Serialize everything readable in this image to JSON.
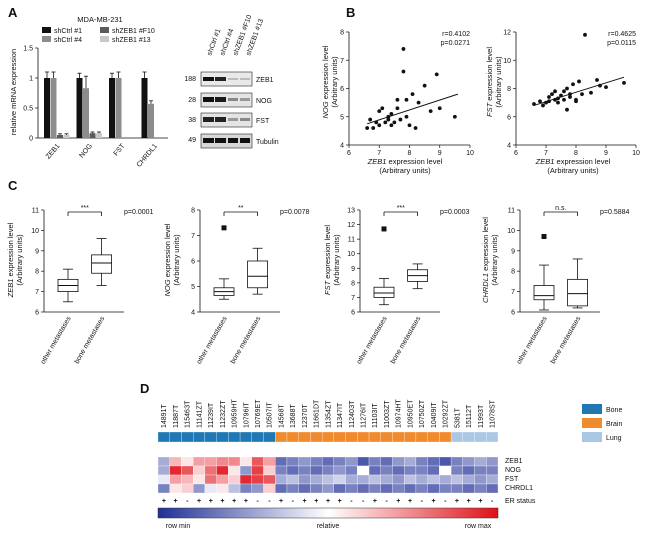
{
  "panels": {
    "a": "A",
    "b": "B",
    "c": "C",
    "d": "D"
  },
  "panel_a": {
    "cell_line": "MDA-MB-231",
    "legend": [
      "shCtrl #1",
      "shCtrl #4",
      "shZEB1 #F10",
      "shZEB1 #13"
    ],
    "colors": [
      "#111111",
      "#8c8c8c",
      "#5a5a5a",
      "#c8c8c8"
    ],
    "ylabel": "relative mRNA expression",
    "yticks": [
      "0",
      "0.5",
      "1",
      "1.5"
    ],
    "blot_lanes": [
      "shCtrl #1",
      "shCtrl #4",
      "shZEB1 #F10",
      "shZEB1 #13"
    ],
    "blot_rows": [
      {
        "mw": "188",
        "name": "ZEB1"
      },
      {
        "mw": "28",
        "name": "NOG"
      },
      {
        "mw": "38",
        "name": "FST"
      },
      {
        "mw": "49",
        "name": "Tubulin"
      }
    ]
  },
  "panel_b": [
    {
      "ylabel_gene": "NOG",
      "ylabel_rest": " expression level",
      "ylabel_unit": "(Arbitrary units)",
      "xlabel_gene": "ZEB1",
      "xlabel_rest": " expression level",
      "xlabel_unit": "(Arbitrary units)",
      "r": "r=0.4102",
      "p": "p=0.0271",
      "xticks": [
        "6",
        "7",
        "8",
        "9",
        "10"
      ],
      "yticks": [
        "4",
        "5",
        "6",
        "7",
        "8"
      ]
    },
    {
      "ylabel_gene": "FST",
      "ylabel_rest": " expression level",
      "ylabel_unit": "(Arbitrary units)",
      "xlabel_gene": "ZEB1",
      "xlabel_rest": " expression level",
      "xlabel_unit": "(Arbitrary units)",
      "r": "r=0.4625",
      "p": "p=0.0115",
      "xticks": [
        "6",
        "7",
        "8",
        "9",
        "10"
      ],
      "yticks": [
        "4",
        "6",
        "8",
        "10",
        "12"
      ]
    }
  ],
  "panel_c": [
    {
      "gene": "ZEB1",
      "sig": "***",
      "p": "p=0.0001",
      "yticks": [
        "6",
        "7",
        "8",
        "9",
        "10",
        "11"
      ]
    },
    {
      "gene": "NOG",
      "sig": "**",
      "p": "p=0.0078",
      "yticks": [
        "4",
        "5",
        "6",
        "7",
        "8"
      ]
    },
    {
      "gene": "FST",
      "sig": "***",
      "p": "p=0.0003",
      "yticks": [
        "6",
        "7",
        "8",
        "9",
        "10",
        "11",
        "12",
        "13"
      ]
    },
    {
      "gene": "CHRDL1",
      "sig": "n.s.",
      "p": "p=0.5884",
      "yticks": [
        "6",
        "7",
        "8",
        "9",
        "10",
        "11"
      ]
    }
  ],
  "panel_c_common": {
    "rest": " expression level",
    "unit": "(Arbitrary units)",
    "groups": [
      "other metastases",
      "bone metastases"
    ]
  },
  "panel_d": {
    "samples": [
      "14891T",
      "11887T",
      "11546ЗT",
      "11141ZT",
      "11239IT",
      "11232ZT",
      "10959HT",
      "10796IT",
      "10769ET",
      "10507IT",
      "14568T",
      "13688T",
      "12370T",
      "11661DT",
      "11354ZT",
      "11347IT",
      "11240ЗT",
      "11276IT",
      "11103IT",
      "11003ZT",
      "10974HT",
      "10950ET",
      "10750ZT",
      "10409IT",
      "10292ZT",
      "5381T",
      "15112T",
      "11993T",
      "11078ST"
    ],
    "legend": [
      {
        "label": "Bone",
        "color": "#1f77b4"
      },
      {
        "label": "Brain",
        "color": "#f08a2c"
      },
      {
        "label": "Lung",
        "color": "#aac7e6"
      }
    ],
    "genes": [
      "ZEB1",
      "NOG",
      "FST",
      "CHRDL1"
    ],
    "er_label": "ER status",
    "er": [
      "+",
      "+",
      "-",
      "+",
      "+",
      "+",
      "+",
      "+",
      "-",
      "-",
      "+",
      "-",
      "+",
      "+",
      "+",
      "+",
      "-",
      "-",
      "+",
      "-",
      "+",
      "+",
      "-",
      "+",
      "-",
      "+",
      "+",
      "+",
      "-"
    ],
    "colorbar": {
      "min": "row min",
      "mid": "relative",
      "max": "row max"
    }
  },
  "chart_data": [
    {
      "type": "bar",
      "title": "MDA-MB-231",
      "ylabel": "relative mRNA expression",
      "ylim": [
        0,
        1.5
      ],
      "categories": [
        "ZEB1",
        "NOG",
        "FST",
        "CHRDL1"
      ],
      "series": [
        {
          "name": "shCtrl #1",
          "values": [
            1.0,
            1.0,
            1.0,
            1.0
          ],
          "errors": [
            0.1,
            0.08,
            0.08,
            0.1
          ]
        },
        {
          "name": "shCtrl #4",
          "values": [
            1.0,
            0.83,
            1.0,
            0.57
          ],
          "errors": [
            0.1,
            0.2,
            0.1,
            0.05
          ]
        },
        {
          "name": "shZEB1 #F10",
          "values": [
            0.05,
            0.08,
            0.0,
            0.0
          ],
          "errors": [
            0.02,
            0.02,
            0.0,
            0.0
          ]
        },
        {
          "name": "shZEB1 #13",
          "values": [
            0.05,
            0.08,
            0.0,
            0.0
          ],
          "errors": [
            0.02,
            0.02,
            0.0,
            0.0
          ]
        }
      ]
    },
    {
      "type": "scatter",
      "xlabel": "ZEB1 expression level",
      "ylabel": "NOG expression level",
      "xlim": [
        6,
        10
      ],
      "ylim": [
        4,
        8
      ],
      "x": [
        6.6,
        6.7,
        6.8,
        6.9,
        7.0,
        7.0,
        7.1,
        7.2,
        7.3,
        7.3,
        7.4,
        7.5,
        7.6,
        7.6,
        7.7,
        7.8,
        7.8,
        7.9,
        8.0,
        8.1,
        8.2,
        8.3,
        8.5,
        8.7,
        8.9,
        9.0,
        9.5,
        7.4,
        7.9
      ],
      "y": [
        4.6,
        4.9,
        4.6,
        4.8,
        5.2,
        4.7,
        5.3,
        4.8,
        4.9,
        5.0,
        5.1,
        4.8,
        5.3,
        5.6,
        4.9,
        6.6,
        7.4,
        5.0,
        4.7,
        5.8,
        4.6,
        5.5,
        6.1,
        5.2,
        6.5,
        5.3,
        5.0,
        4.7,
        5.6
      ],
      "fit": {
        "x": [
          6.6,
          9.6
        ],
        "y": [
          4.75,
          5.8
        ]
      }
    },
    {
      "type": "scatter",
      "xlabel": "ZEB1 expression level",
      "ylabel": "FST expression level",
      "xlim": [
        6,
        10
      ],
      "ylim": [
        4,
        12
      ],
      "x": [
        6.6,
        6.8,
        6.9,
        7.0,
        7.1,
        7.1,
        7.2,
        7.3,
        7.4,
        7.4,
        7.5,
        7.6,
        7.6,
        7.7,
        7.8,
        7.8,
        7.9,
        8.0,
        8.1,
        8.2,
        8.3,
        8.5,
        8.7,
        9.0,
        9.6,
        7.3,
        7.7,
        8.0,
        8.8
      ],
      "y": [
        6.9,
        7.1,
        6.8,
        7.0,
        7.4,
        7.1,
        7.6,
        7.2,
        7.0,
        7.3,
        7.5,
        7.8,
        7.2,
        8.0,
        7.4,
        7.6,
        8.3,
        7.1,
        8.5,
        7.6,
        11.8,
        7.7,
        8.6,
        8.1,
        8.4,
        7.8,
        6.5,
        7.2,
        8.2
      ],
      "fit": {
        "x": [
          6.6,
          9.6
        ],
        "y": [
          6.8,
          8.8
        ]
      }
    },
    {
      "type": "box",
      "ylabel": "ZEB1 expression level",
      "ylim": [
        6,
        11
      ],
      "categories": [
        "other metastases",
        "bone metastases"
      ],
      "boxes": [
        {
          "min": 6.5,
          "q1": 7.0,
          "median": 7.3,
          "q3": 7.6,
          "max": 8.1
        },
        {
          "min": 7.3,
          "q1": 7.9,
          "median": 8.4,
          "q3": 8.8,
          "max": 9.6
        }
      ]
    },
    {
      "type": "box",
      "ylabel": "NOG expression level",
      "ylim": [
        4,
        8
      ],
      "categories": [
        "other metastases",
        "bone metastases"
      ],
      "boxes": [
        {
          "min": 4.5,
          "q1": 4.65,
          "median": 4.8,
          "q3": 4.95,
          "max": 5.3,
          "outliers": [
            7.3
          ]
        },
        {
          "min": 4.7,
          "q1": 4.95,
          "median": 5.4,
          "q3": 6.0,
          "max": 6.5
        }
      ]
    },
    {
      "type": "box",
      "ylabel": "FST expression level",
      "ylim": [
        6,
        13
      ],
      "categories": [
        "other metastases",
        "bone metastases"
      ],
      "boxes": [
        {
          "min": 6.5,
          "q1": 7.0,
          "median": 7.3,
          "q3": 7.7,
          "max": 8.3,
          "outliers": [
            11.7
          ]
        },
        {
          "min": 7.6,
          "q1": 8.1,
          "median": 8.5,
          "q3": 8.9,
          "max": 9.3
        }
      ]
    },
    {
      "type": "box",
      "ylabel": "CHRDL1 expression level",
      "ylim": [
        6,
        11
      ],
      "categories": [
        "other metastases",
        "bone metastases"
      ],
      "boxes": [
        {
          "min": 6.1,
          "q1": 6.6,
          "median": 6.8,
          "q3": 7.3,
          "max": 8.3,
          "outliers": [
            9.7
          ]
        },
        {
          "min": 6.2,
          "q1": 6.3,
          "median": 6.9,
          "q3": 7.6,
          "max": 8.6
        }
      ]
    },
    {
      "type": "heatmap",
      "rows": [
        "ZEB1",
        "NOG",
        "FST",
        "CHRDL1"
      ],
      "scale": [
        0,
        1
      ],
      "values": [
        [
          0.3,
          0.65,
          0.55,
          0.7,
          0.7,
          0.75,
          0.75,
          0.55,
          0.85,
          0.7,
          0.15,
          0.2,
          0.25,
          0.2,
          0.15,
          0.2,
          0.25,
          0.1,
          0.2,
          0.15,
          0.25,
          0.3,
          0.2,
          0.15,
          0.1,
          0.2,
          0.25,
          0.3,
          0.25
        ],
        [
          0.3,
          0.95,
          0.85,
          0.6,
          0.8,
          0.95,
          0.55,
          0.25,
          0.9,
          0.6,
          0.2,
          0.15,
          0.2,
          0.15,
          0.2,
          0.25,
          0.2,
          0.5,
          0.15,
          0.2,
          0.15,
          0.2,
          0.2,
          0.15,
          0.5,
          0.2,
          0.15,
          0.2,
          0.2
        ],
        [
          0.45,
          0.7,
          0.65,
          0.55,
          0.8,
          0.7,
          0.6,
          0.95,
          0.9,
          0.85,
          0.3,
          0.35,
          0.25,
          0.3,
          0.35,
          0.4,
          0.3,
          0.3,
          0.35,
          0.3,
          0.25,
          0.35,
          0.3,
          0.35,
          0.3,
          0.35,
          0.3,
          0.25,
          0.3
        ],
        [
          0.2,
          0.55,
          0.6,
          0.25,
          0.45,
          0.55,
          0.35,
          0.2,
          0.25,
          0.6,
          0.15,
          0.2,
          0.15,
          0.2,
          0.25,
          0.15,
          0.2,
          0.15,
          0.2,
          0.15,
          0.2,
          0.15,
          0.2,
          0.15,
          0.2,
          0.2,
          0.15,
          0.2,
          0.15
        ]
      ]
    }
  ]
}
